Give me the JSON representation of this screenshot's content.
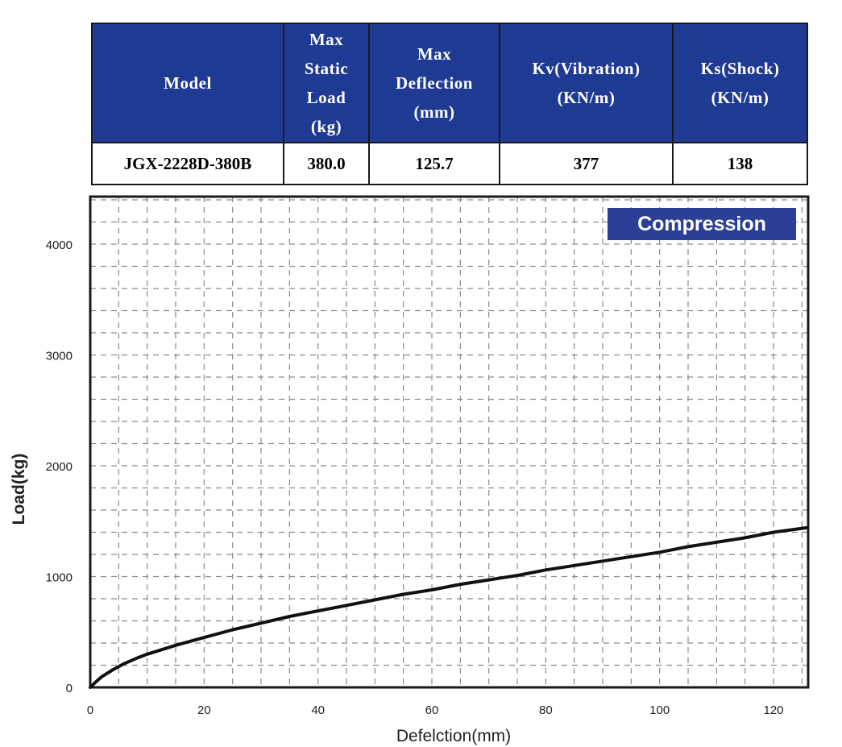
{
  "table": {
    "headers": [
      [
        "Max",
        "Static",
        "Load",
        "(kg)"
      ],
      [
        "Max",
        "Deflection",
        "(mm)"
      ],
      [
        "Kv(Vibration)",
        "(KN/m)"
      ],
      [
        "Ks(Shock)",
        "(KN/m)"
      ]
    ],
    "header_model": "Model",
    "row": {
      "model": "JGX-2228D-380B",
      "max_static_load": "380.0",
      "max_deflection": "125.7",
      "kv": "377",
      "ks": "138"
    },
    "header_color": "#1e3a93"
  },
  "chart_data": {
    "type": "line",
    "title": "Compression",
    "xlabel": "Defelction(mm)",
    "ylabel": "Load(kg)",
    "xlim": [
      0,
      126
    ],
    "ylim": [
      0,
      4450
    ],
    "x_ticks": [
      "0",
      "20",
      "40",
      "60",
      "80",
      "100",
      "120"
    ],
    "y_ticks": [
      "0",
      "1000",
      "2000",
      "3000",
      "4000"
    ],
    "grid": true,
    "legend_color": "#2a3f95",
    "series": [
      {
        "color": "#111111",
        "x": [
          0,
          1,
          2,
          4,
          6,
          8,
          10,
          15,
          20,
          25,
          30,
          35,
          40,
          45,
          50,
          55,
          60,
          65,
          70,
          75,
          80,
          85,
          90,
          95,
          100,
          105,
          110,
          115,
          120,
          125.7
        ],
        "y": [
          0,
          50,
          95,
          160,
          215,
          260,
          300,
          380,
          450,
          520,
          580,
          640,
          690,
          740,
          790,
          840,
          880,
          930,
          970,
          1010,
          1060,
          1100,
          1140,
          1180,
          1220,
          1270,
          1310,
          1350,
          1400,
          1440
        ]
      }
    ]
  }
}
